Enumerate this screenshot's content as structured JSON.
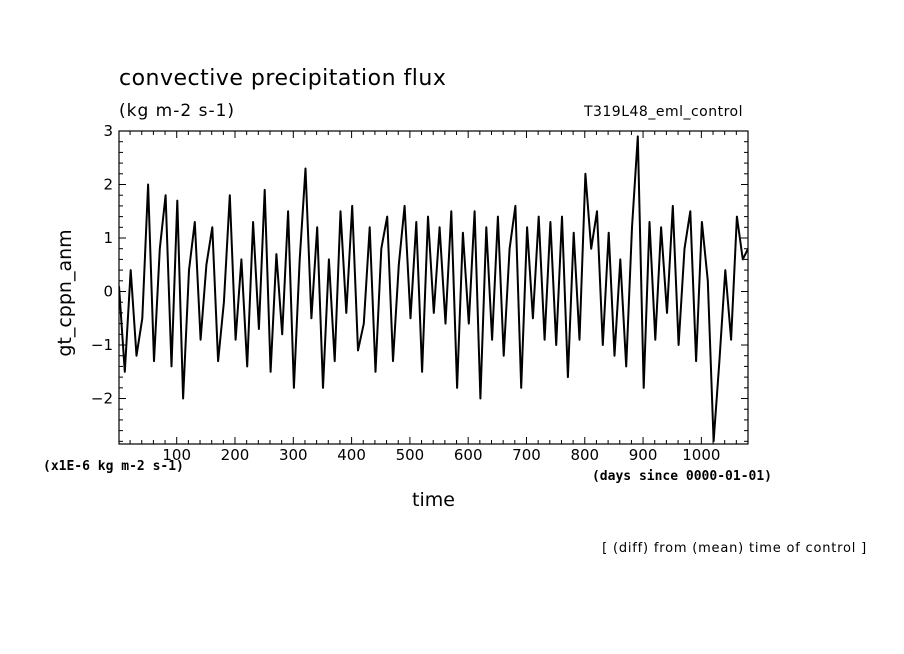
{
  "chart_data": {
    "type": "line",
    "title": "convective precipitation flux",
    "units_label": "(kg m-2 s-1)",
    "run_name": "T319L48_eml_control",
    "xlabel": "time",
    "x_units_label": "(days since 0000-01-01)",
    "ylabel": "gt_cppn_anm",
    "y_scale_label": "(x1E-6 kg m-2 s-1)",
    "footnote": "[ (diff) from (mean) time of control ]",
    "xlim": [
      1,
      1080
    ],
    "ylim": [
      -2.85,
      3.0
    ],
    "x_ticks": [
      100,
      200,
      300,
      400,
      500,
      600,
      700,
      800,
      900,
      1000
    ],
    "y_ticks": [
      -2,
      -1,
      0,
      1,
      2,
      3
    ],
    "grid": false,
    "colors": {
      "line": "#000000",
      "axes": "#000000",
      "background": "#ffffff"
    },
    "series": [
      {
        "x": [
          1,
          11,
          21,
          31,
          41,
          51,
          61,
          71,
          81,
          91,
          101,
          111,
          121,
          131,
          141,
          151,
          161,
          171,
          181,
          191,
          201,
          211,
          221,
          231,
          241,
          251,
          261,
          271,
          281,
          291,
          301,
          311,
          321,
          331,
          341,
          351,
          361,
          371,
          381,
          391,
          401,
          411,
          421,
          431,
          441,
          451,
          461,
          471,
          481,
          491,
          501,
          511,
          521,
          531,
          541,
          551,
          561,
          571,
          581,
          591,
          601,
          611,
          621,
          631,
          641,
          651,
          661,
          671,
          681,
          691,
          701,
          711,
          721,
          731,
          741,
          751,
          761,
          771,
          781,
          791,
          801,
          811,
          821,
          831,
          841,
          851,
          861,
          871,
          881,
          891,
          901,
          911,
          921,
          931,
          941,
          951,
          961,
          971,
          981,
          991,
          1001,
          1011,
          1021,
          1031,
          1041,
          1051,
          1061,
          1071,
          1080
        ],
        "y": [
          0.1,
          -1.5,
          0.4,
          -1.2,
          -0.5,
          2.0,
          -1.3,
          0.8,
          1.8,
          -1.4,
          1.7,
          -2.0,
          0.4,
          1.3,
          -0.9,
          0.5,
          1.2,
          -1.3,
          -0.2,
          1.8,
          -0.9,
          0.6,
          -1.4,
          1.3,
          -0.7,
          1.9,
          -1.5,
          0.7,
          -0.8,
          1.5,
          -1.8,
          0.6,
          2.3,
          -0.5,
          1.2,
          -1.8,
          0.6,
          -1.3,
          1.5,
          -0.4,
          1.6,
          -1.1,
          -0.6,
          1.2,
          -1.5,
          0.8,
          1.4,
          -1.3,
          0.5,
          1.6,
          -0.5,
          1.3,
          -1.5,
          1.4,
          -0.4,
          1.2,
          -0.6,
          1.5,
          -1.8,
          1.1,
          -0.6,
          1.5,
          -2.0,
          1.2,
          -0.9,
          1.4,
          -1.2,
          0.8,
          1.6,
          -1.8,
          1.2,
          -0.5,
          1.4,
          -0.9,
          1.3,
          -1.0,
          1.4,
          -1.6,
          1.1,
          -0.9,
          2.2,
          0.8,
          1.5,
          -1.0,
          1.1,
          -1.2,
          0.6,
          -1.4,
          1.2,
          2.9,
          -1.8,
          1.3,
          -0.9,
          1.2,
          -0.4,
          1.6,
          -1.0,
          0.8,
          1.5,
          -1.3,
          1.3,
          0.2,
          -2.8,
          -1.3,
          0.4,
          -0.9,
          1.4,
          0.6,
          0.8
        ]
      }
    ]
  }
}
